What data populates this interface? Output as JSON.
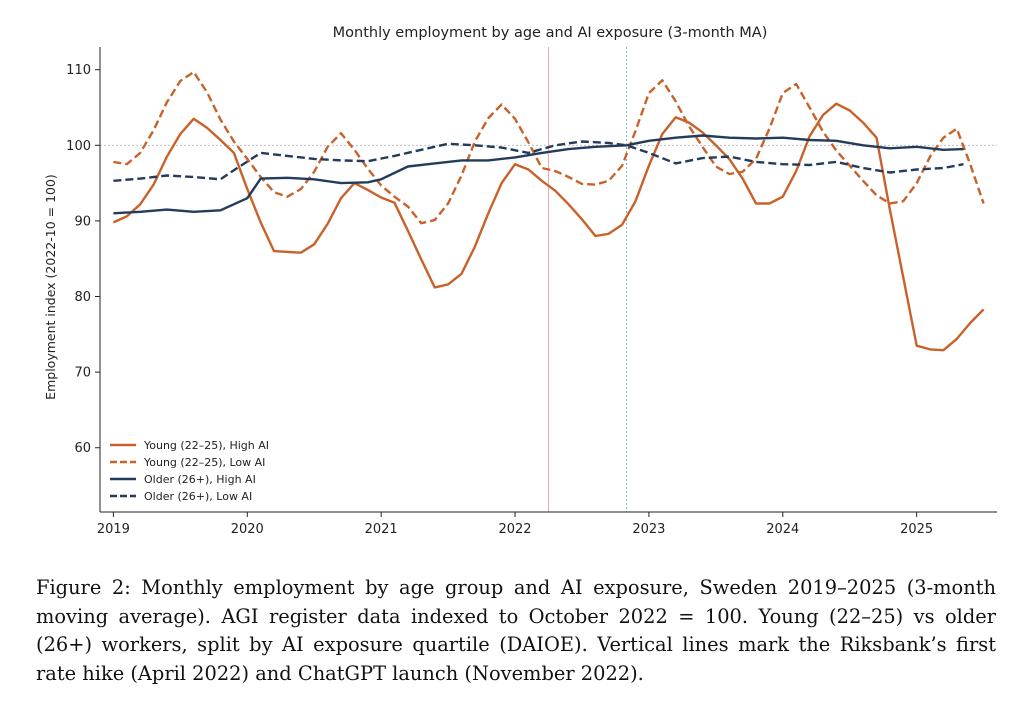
{
  "chart_data": {
    "type": "line",
    "title": "Monthly employment by age and AI exposure (3-month MA)",
    "xlabel": "",
    "ylabel": "Employment index (2022-10 = 100)",
    "xlim": [
      2018.9,
      2025.6
    ],
    "ylim": [
      51.5,
      113
    ],
    "yticks": [
      60,
      70,
      80,
      90,
      100,
      110
    ],
    "xticks": [
      2019,
      2020,
      2021,
      2022,
      2023,
      2024,
      2025
    ],
    "ytick_labels": [
      "60",
      "70",
      "80",
      "90",
      "100",
      "110"
    ],
    "xtick_labels": [
      "2019",
      "2020",
      "2021",
      "2022",
      "2023",
      "2024",
      "2025"
    ],
    "reference_line_y": 100,
    "vlines": [
      {
        "x": 2022.25,
        "color": "#f4a6b0",
        "style": "solid",
        "label": "Riksbank first rate hike"
      },
      {
        "x": 2022.833,
        "color": "#6fb8b0",
        "style": "dotted",
        "label": "ChatGPT launch"
      }
    ],
    "legend_position": "lower-left",
    "series": [
      {
        "name": "Young (22–25), High AI",
        "color": "#c8622a",
        "dash": "solid",
        "points": [
          [
            2019.0,
            89.8
          ],
          [
            2019.1,
            90.6
          ],
          [
            2019.2,
            92.2
          ],
          [
            2019.3,
            94.8
          ],
          [
            2019.4,
            98.5
          ],
          [
            2019.5,
            101.5
          ],
          [
            2019.6,
            103.5
          ],
          [
            2019.7,
            102.3
          ],
          [
            2019.8,
            100.7
          ],
          [
            2019.9,
            99.0
          ],
          [
            2020.0,
            94.2
          ],
          [
            2020.1,
            89.8
          ],
          [
            2020.2,
            86.0
          ],
          [
            2020.3,
            85.9
          ],
          [
            2020.4,
            85.8
          ],
          [
            2020.5,
            86.9
          ],
          [
            2020.6,
            89.6
          ],
          [
            2020.7,
            93.0
          ],
          [
            2020.8,
            95.0
          ],
          [
            2020.9,
            94.1
          ],
          [
            2021.0,
            93.1
          ],
          [
            2021.1,
            92.4
          ],
          [
            2021.2,
            88.7
          ],
          [
            2021.3,
            84.9
          ],
          [
            2021.4,
            81.2
          ],
          [
            2021.5,
            81.6
          ],
          [
            2021.6,
            83.0
          ],
          [
            2021.7,
            86.6
          ],
          [
            2021.8,
            91.0
          ],
          [
            2021.9,
            95.0
          ],
          [
            2022.0,
            97.5
          ],
          [
            2022.1,
            96.8
          ],
          [
            2022.2,
            95.3
          ],
          [
            2022.3,
            94.0
          ],
          [
            2022.4,
            92.2
          ],
          [
            2022.5,
            90.2
          ],
          [
            2022.6,
            88.0
          ],
          [
            2022.7,
            88.3
          ],
          [
            2022.8,
            89.5
          ],
          [
            2022.9,
            92.6
          ],
          [
            2023.0,
            97.3
          ],
          [
            2023.1,
            101.5
          ],
          [
            2023.2,
            103.7
          ],
          [
            2023.3,
            103.0
          ],
          [
            2023.4,
            101.7
          ],
          [
            2023.5,
            100.0
          ],
          [
            2023.6,
            98.2
          ],
          [
            2023.7,
            95.6
          ],
          [
            2023.8,
            92.3
          ],
          [
            2023.9,
            92.3
          ],
          [
            2024.0,
            93.2
          ],
          [
            2024.1,
            96.6
          ],
          [
            2024.2,
            101.2
          ],
          [
            2024.3,
            104.0
          ],
          [
            2024.4,
            105.5
          ],
          [
            2024.5,
            104.6
          ],
          [
            2024.6,
            103.0
          ],
          [
            2024.7,
            101.0
          ],
          [
            2024.8,
            91.5
          ],
          [
            2024.9,
            82.5
          ],
          [
            2025.0,
            73.5
          ],
          [
            2025.1,
            73.0
          ],
          [
            2025.2,
            72.9
          ],
          [
            2025.3,
            74.4
          ],
          [
            2025.4,
            76.5
          ],
          [
            2025.5,
            78.3
          ]
        ]
      },
      {
        "name": "Young (22–25), Low AI",
        "color": "#c8622a",
        "dash": "dashed",
        "points": [
          [
            2019.0,
            97.8
          ],
          [
            2019.1,
            97.5
          ],
          [
            2019.2,
            99.0
          ],
          [
            2019.3,
            102.0
          ],
          [
            2019.4,
            105.7
          ],
          [
            2019.5,
            108.5
          ],
          [
            2019.6,
            109.7
          ],
          [
            2019.7,
            107.0
          ],
          [
            2019.8,
            103.4
          ],
          [
            2019.9,
            100.5
          ],
          [
            2020.0,
            98.2
          ],
          [
            2020.1,
            95.8
          ],
          [
            2020.2,
            93.8
          ],
          [
            2020.3,
            93.2
          ],
          [
            2020.4,
            94.2
          ],
          [
            2020.5,
            96.5
          ],
          [
            2020.6,
            99.8
          ],
          [
            2020.7,
            101.6
          ],
          [
            2020.8,
            99.4
          ],
          [
            2020.9,
            96.9
          ],
          [
            2021.0,
            94.7
          ],
          [
            2021.1,
            93.2
          ],
          [
            2021.2,
            91.9
          ],
          [
            2021.3,
            89.7
          ],
          [
            2021.4,
            90.1
          ],
          [
            2021.5,
            92.3
          ],
          [
            2021.6,
            96.0
          ],
          [
            2021.7,
            100.5
          ],
          [
            2021.8,
            103.6
          ],
          [
            2021.9,
            105.4
          ],
          [
            2022.0,
            103.5
          ],
          [
            2022.1,
            100.4
          ],
          [
            2022.2,
            97.0
          ],
          [
            2022.3,
            96.6
          ],
          [
            2022.4,
            95.8
          ],
          [
            2022.5,
            94.9
          ],
          [
            2022.6,
            94.8
          ],
          [
            2022.7,
            95.3
          ],
          [
            2022.8,
            97.3
          ],
          [
            2022.9,
            101.9
          ],
          [
            2023.0,
            106.9
          ],
          [
            2023.1,
            108.6
          ],
          [
            2023.2,
            105.8
          ],
          [
            2023.3,
            102.5
          ],
          [
            2023.4,
            99.8
          ],
          [
            2023.5,
            97.2
          ],
          [
            2023.6,
            96.2
          ],
          [
            2023.7,
            96.5
          ],
          [
            2023.8,
            98.2
          ],
          [
            2023.9,
            102.2
          ],
          [
            2024.0,
            106.9
          ],
          [
            2024.1,
            108.1
          ],
          [
            2024.2,
            105.0
          ],
          [
            2024.3,
            101.8
          ],
          [
            2024.4,
            99.3
          ],
          [
            2024.5,
            97.3
          ],
          [
            2024.6,
            95.3
          ],
          [
            2024.7,
            93.4
          ],
          [
            2024.8,
            92.3
          ],
          [
            2024.9,
            92.6
          ],
          [
            2025.0,
            95.0
          ],
          [
            2025.1,
            98.5
          ],
          [
            2025.2,
            101.0
          ],
          [
            2025.3,
            102.2
          ],
          [
            2025.4,
            97.5
          ],
          [
            2025.5,
            92.3
          ]
        ]
      },
      {
        "name": "Older (26+), High AI",
        "color": "#233b5c",
        "dash": "solid",
        "points": [
          [
            2019.0,
            91.0
          ],
          [
            2019.2,
            91.2
          ],
          [
            2019.4,
            91.5
          ],
          [
            2019.6,
            91.2
          ],
          [
            2019.8,
            91.4
          ],
          [
            2020.0,
            93.0
          ],
          [
            2020.1,
            95.6
          ],
          [
            2020.3,
            95.7
          ],
          [
            2020.5,
            95.5
          ],
          [
            2020.7,
            95.0
          ],
          [
            2020.9,
            95.1
          ],
          [
            2021.0,
            95.5
          ],
          [
            2021.2,
            97.2
          ],
          [
            2021.4,
            97.6
          ],
          [
            2021.6,
            98.0
          ],
          [
            2021.8,
            98.0
          ],
          [
            2022.0,
            98.4
          ],
          [
            2022.2,
            99.0
          ],
          [
            2022.4,
            99.5
          ],
          [
            2022.6,
            99.8
          ],
          [
            2022.833,
            100.0
          ],
          [
            2023.0,
            100.6
          ],
          [
            2023.2,
            101.0
          ],
          [
            2023.4,
            101.3
          ],
          [
            2023.6,
            101.0
          ],
          [
            2023.8,
            100.9
          ],
          [
            2024.0,
            101.0
          ],
          [
            2024.2,
            100.7
          ],
          [
            2024.4,
            100.6
          ],
          [
            2024.6,
            100.0
          ],
          [
            2024.8,
            99.6
          ],
          [
            2025.0,
            99.8
          ],
          [
            2025.2,
            99.4
          ],
          [
            2025.35,
            99.5
          ]
        ]
      },
      {
        "name": "Older (26+), Low AI",
        "color": "#233b5c",
        "dash": "dashed",
        "points": [
          [
            2019.0,
            95.3
          ],
          [
            2019.2,
            95.6
          ],
          [
            2019.4,
            96.0
          ],
          [
            2019.6,
            95.8
          ],
          [
            2019.8,
            95.5
          ],
          [
            2019.9,
            96.7
          ],
          [
            2020.1,
            99.0
          ],
          [
            2020.3,
            98.6
          ],
          [
            2020.5,
            98.2
          ],
          [
            2020.7,
            98.0
          ],
          [
            2020.9,
            97.9
          ],
          [
            2021.1,
            98.6
          ],
          [
            2021.3,
            99.4
          ],
          [
            2021.5,
            100.2
          ],
          [
            2021.7,
            100.0
          ],
          [
            2021.9,
            99.7
          ],
          [
            2022.1,
            99.0
          ],
          [
            2022.3,
            100.0
          ],
          [
            2022.5,
            100.5
          ],
          [
            2022.7,
            100.3
          ],
          [
            2022.833,
            100.0
          ],
          [
            2023.0,
            99.0
          ],
          [
            2023.2,
            97.6
          ],
          [
            2023.4,
            98.3
          ],
          [
            2023.6,
            98.5
          ],
          [
            2023.8,
            97.8
          ],
          [
            2024.0,
            97.5
          ],
          [
            2024.2,
            97.4
          ],
          [
            2024.4,
            97.8
          ],
          [
            2024.6,
            97.0
          ],
          [
            2024.8,
            96.4
          ],
          [
            2025.0,
            96.8
          ],
          [
            2025.2,
            97.0
          ],
          [
            2025.35,
            97.5
          ]
        ]
      }
    ]
  },
  "caption": {
    "text": "Figure 2: Monthly employment by age group and AI exposure, Sweden 2019–2025 (3-month moving average). AGI register data indexed to October 2022 = 100. Young (22–25) vs older (26+) workers, split by AI exposure quartile (DAIOE). Vertical lines mark the Riksbank’s first rate hike (April 2022) and ChatGPT launch (November 2022)."
  }
}
